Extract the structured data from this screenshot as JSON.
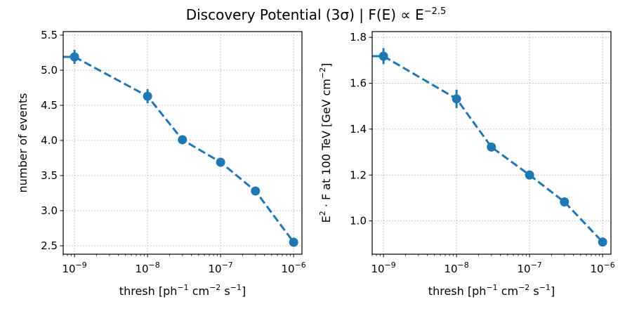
{
  "title": {
    "main": "Discovery Potential (3σ) | F(E) ∝ E",
    "exponent": "−2.5"
  },
  "colors": {
    "series": "#1f77b4",
    "grid": "#b0b0b0"
  },
  "chart_data": [
    {
      "type": "line",
      "xscale": "log",
      "xlim": [
        7e-10,
        1.3e-06
      ],
      "ylim": [
        2.38,
        5.55
      ],
      "grid": true,
      "line_style": "dashed",
      "marker": "circle",
      "xlabel": {
        "prefix": "thresh    [ph",
        "s1": "−1",
        "m1": " cm",
        "s2": "−2",
        "m2": " s",
        "s3": "−1",
        "suffix": "]"
      },
      "ylabel": "number of events",
      "yticks": [
        {
          "value": 2.5,
          "label": "2.5"
        },
        {
          "value": 3.0,
          "label": "3.0"
        },
        {
          "value": 3.5,
          "label": "3.5"
        },
        {
          "value": 4.0,
          "label": "4.0"
        },
        {
          "value": 4.5,
          "label": "4.5"
        },
        {
          "value": 5.0,
          "label": "5.0"
        },
        {
          "value": 5.5,
          "label": "5.5"
        }
      ],
      "xticks": [
        {
          "value": 1e-09,
          "base": "10",
          "exp": "−9"
        },
        {
          "value": 1e-08,
          "base": "10",
          "exp": "−8"
        },
        {
          "value": 1e-07,
          "base": "10",
          "exp": "−7"
        },
        {
          "value": 1e-06,
          "base": "10",
          "exp": "−6"
        }
      ],
      "x": [
        1e-09,
        1e-08,
        3e-08,
        1e-07,
        3e-07,
        1e-06
      ],
      "y": [
        5.19,
        4.63,
        4.01,
        3.69,
        3.28,
        2.55
      ],
      "yerr": [
        0.1,
        0.1,
        0.04,
        0.03,
        0.03,
        0.02
      ],
      "extend_left_to": 7e-10,
      "extend_left_value": 5.19
    },
    {
      "type": "line",
      "xscale": "log",
      "xlim": [
        7e-10,
        1.3e-06
      ],
      "ylim": [
        0.855,
        1.825
      ],
      "grid": true,
      "line_style": "dashed",
      "marker": "circle",
      "xlabel": {
        "prefix": "thresh    [ph",
        "s1": "−1",
        "m1": " cm",
        "s2": "−2",
        "m2": " s",
        "s3": "−1",
        "suffix": "]"
      },
      "ylabel": {
        "e": "E",
        "e_exp": "2",
        "mid": " · F  at 100 TeV    [GeV cm",
        "unit_exp": "−2",
        "end": "]"
      },
      "yticks": [
        {
          "value": 1.0,
          "label": "1.0"
        },
        {
          "value": 1.2,
          "label": "1.2"
        },
        {
          "value": 1.4,
          "label": "1.4"
        },
        {
          "value": 1.6,
          "label": "1.6"
        },
        {
          "value": 1.8,
          "label": "1.8"
        }
      ],
      "xticks": [
        {
          "value": 1e-09,
          "base": "10",
          "exp": "−9"
        },
        {
          "value": 1e-08,
          "base": "10",
          "exp": "−8"
        },
        {
          "value": 1e-07,
          "base": "10",
          "exp": "−7"
        },
        {
          "value": 1e-06,
          "base": "10",
          "exp": "−6"
        }
      ],
      "x": [
        1e-09,
        1e-08,
        3e-08,
        1e-07,
        3e-07,
        1e-06
      ],
      "y": [
        1.718,
        1.532,
        1.322,
        1.2,
        1.083,
        0.908
      ],
      "yerr": [
        0.035,
        0.04,
        0.015,
        0.01,
        0.01,
        0.01
      ],
      "extend_left_to": 7e-10,
      "extend_left_value": 1.718
    }
  ]
}
